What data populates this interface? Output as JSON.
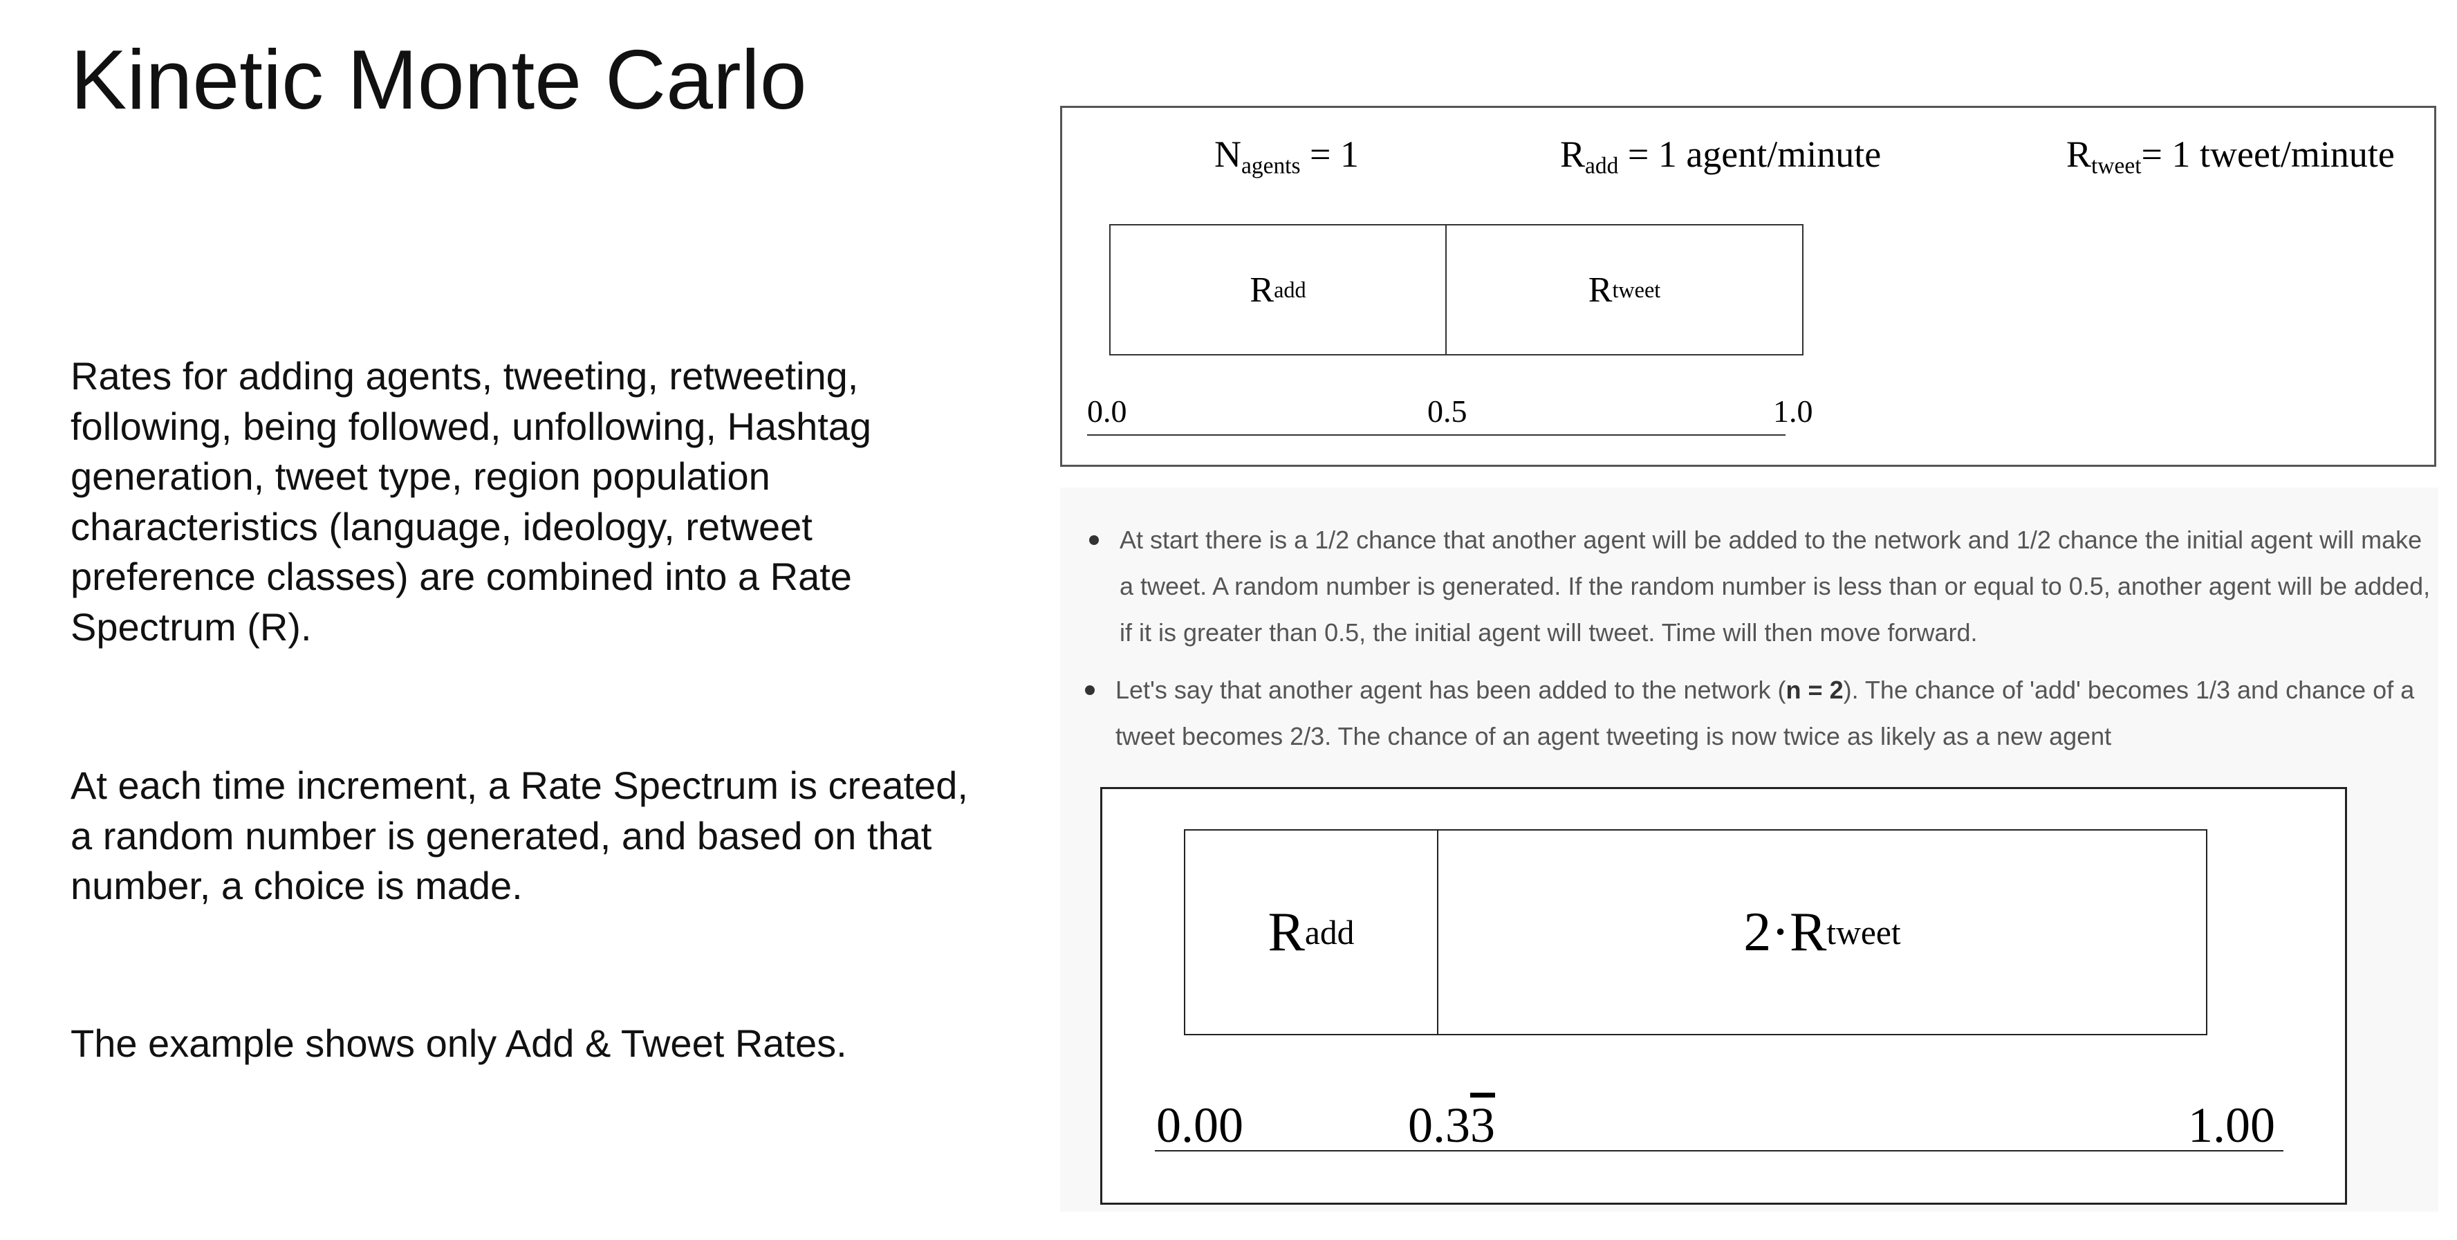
{
  "slide": {
    "title": "Kinetic Monte Carlo",
    "paragraphs": [
      "Rates for adding agents, tweeting, retweeting, following, being followed, unfollowing, Hashtag generation, tweet type, region population characteristics (language, ideology, retweet preference classes) are combined into a Rate Spectrum (R).",
      "At each time increment, a Rate Spectrum is created, a random number is generated, and based on that number, a choice is made.",
      "The example shows only Add & Tweet Rates."
    ]
  },
  "figure_top": {
    "n_agents": {
      "symbol": "N",
      "sub": "agents",
      "rest": " = 1"
    },
    "r_add_rate": {
      "symbol": "R",
      "sub": "add",
      "rest": " = 1 agent/minute"
    },
    "r_tweet_rate": {
      "symbol": "R",
      "sub": "tweet",
      "rest": "= 1 tweet/minute"
    },
    "segments": [
      {
        "symbol": "R",
        "sub": "add",
        "share": 0.5
      },
      {
        "symbol": "R",
        "sub": "tweet",
        "share": 0.5
      }
    ],
    "ticks": [
      "0.0",
      "0.5",
      "1.0"
    ]
  },
  "bullets": [
    {
      "text": "At start there is a 1/2 chance that another agent will be added to the network and 1/2 chance the initial agent will make a tweet. A random number is generated. If the random number is less than or equal to 0.5, another agent will be added, if it is greater than 0.5, the initial agent will tweet. Time will then move forward."
    },
    {
      "pre": "Let's say that another agent has been added to the network (",
      "bold": "n = 2",
      "post": "). The chance of 'add' becomes 1/3 and chance of a tweet becomes 2/3. The chance of an agent tweeting is now twice as likely as a new agent"
    }
  ],
  "figure_bottom": {
    "segments": [
      {
        "prefix": "",
        "symbol": "R",
        "sub": "add",
        "share": 0.3333
      },
      {
        "prefix": "2·",
        "symbol": "R",
        "sub": "tweet",
        "share": 0.6667
      }
    ],
    "ticks": [
      {
        "main": "0.00",
        "repeat": ""
      },
      {
        "main": "0.3",
        "repeat": "3"
      },
      {
        "main": "1.00",
        "repeat": ""
      }
    ]
  }
}
